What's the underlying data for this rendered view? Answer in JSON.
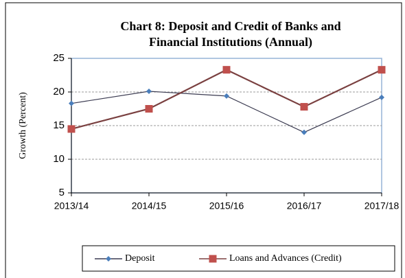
{
  "chart_data": {
    "type": "line",
    "title": [
      "Chart 8:  Deposit and Credit of Banks and",
      "Financial Institutions (Annual)"
    ],
    "y_label": "Growth (Percent)",
    "categories": [
      "2013/14",
      "2014/15",
      "2015/16",
      "2016/17",
      "2017/18"
    ],
    "series": [
      {
        "name": "Deposit",
        "color": "#4a7ebb",
        "marker": "diamond",
        "values": [
          18.3,
          20.1,
          19.4,
          14.0,
          19.2
        ]
      },
      {
        "name": "Loans and Advances (Credit)",
        "color": "#c0504d",
        "marker": "square",
        "values": [
          14.5,
          17.5,
          23.3,
          17.8,
          23.3
        ]
      }
    ],
    "ylim": [
      5,
      25
    ],
    "yticks": [
      5,
      10,
      15,
      20,
      25
    ],
    "grid": true,
    "legend": "bottom"
  }
}
